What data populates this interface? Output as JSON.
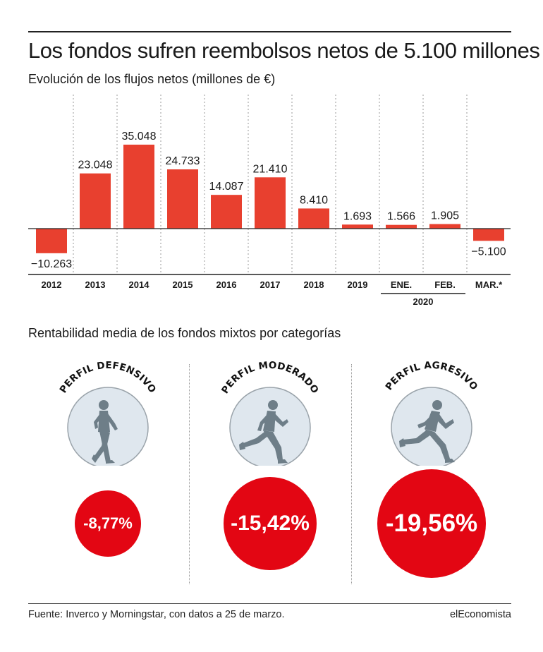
{
  "title": "Los fondos sufren reembolsos netos de 5.100 millones",
  "subtitle": "Evolución de los flujos netos (millones de €)",
  "chart_data": {
    "type": "bar",
    "categories": [
      "2012",
      "2013",
      "2014",
      "2015",
      "2016",
      "2017",
      "2018",
      "2019",
      "ENE.",
      "FEB.",
      "MAR.*"
    ],
    "values": [
      -10263,
      23048,
      35048,
      24733,
      14087,
      21410,
      8410,
      1693,
      1566,
      1905,
      -5100
    ],
    "value_labels": [
      "−10.263",
      "23.048",
      "35.048",
      "24.733",
      "14.087",
      "21.410",
      "8.410",
      "1.693",
      "1.566",
      "1.905",
      "−5.100"
    ],
    "group_label": "2020",
    "bar_color": "#e8402f",
    "ylim": [
      -12000,
      40000
    ],
    "grid": "vertical dotted separators"
  },
  "section2_title": "Rentabilidad media de los fondos mixtos por categorías",
  "profiles": [
    {
      "label": "PERFIL DEFENSIVO",
      "value": "-8,77%",
      "value_num": -8.77,
      "icon": "runner-icon"
    },
    {
      "label": "PERFIL MODERADO",
      "value": "-15,42%",
      "value_num": -15.42,
      "icon": "runner-icon"
    },
    {
      "label": "PERFIL AGRESIVO",
      "value": "-19,56%",
      "value_num": -19.56,
      "icon": "runner-icon"
    }
  ],
  "colors": {
    "accent_red": "#e30613",
    "bar": "#e8402f",
    "icon_circle": "#dfe7ee",
    "runner": "#6e7e88"
  },
  "source": "Fuente: Inverco y Morningstar, con datos a 25 de marzo.",
  "brand": "elEconomista"
}
